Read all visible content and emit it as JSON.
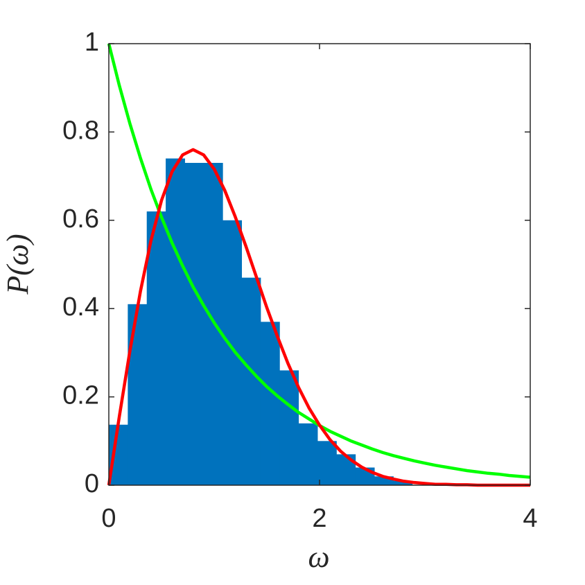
{
  "chart_data": {
    "type": "histogram",
    "x_label": "ω",
    "y_label": "P(ω)",
    "bins": [
      0,
      0.18,
      0.36,
      0.54,
      0.72,
      0.9,
      1.08,
      1.26,
      1.44,
      1.62,
      1.8,
      1.98,
      2.16,
      2.34,
      2.52,
      2.7,
      2.88
    ],
    "values": [
      0.137,
      0.41,
      0.62,
      0.74,
      0.73,
      0.73,
      0.6,
      0.47,
      0.37,
      0.26,
      0.14,
      0.1,
      0.07,
      0.04,
      0.02,
      0.01
    ],
    "color": "#0072bd",
    "xlim": [
      0,
      4
    ],
    "ylim": [
      0,
      1
    ],
    "xticks": [
      0,
      2,
      4
    ],
    "yticks": [
      0,
      0.2,
      0.4,
      0.6,
      0.8,
      1
    ],
    "lines": {
      "x": [
        0,
        0.1,
        0.2,
        0.3,
        0.4,
        0.5,
        0.6,
        0.7,
        0.8,
        0.9,
        1,
        1.1,
        1.2,
        1.3,
        1.4,
        1.5,
        1.6,
        1.7,
        1.8,
        1.9,
        2,
        2.1,
        2.2,
        2.3,
        2.4,
        2.5,
        2.6,
        2.7,
        2.8,
        2.9,
        3,
        3.1,
        3.2,
        3.3,
        3.4,
        3.5,
        3.6,
        3.7,
        3.8,
        3.9,
        4
      ],
      "series": [
        {
          "color": "#00ff00",
          "values": [
            1,
            0.905,
            0.819,
            0.741,
            0.67,
            0.607,
            0.549,
            0.497,
            0.449,
            0.407,
            0.368,
            0.333,
            0.301,
            0.273,
            0.247,
            0.223,
            0.202,
            0.183,
            0.165,
            0.15,
            0.135,
            0.122,
            0.111,
            0.1,
            0.091,
            0.082,
            0.074,
            0.067,
            0.061,
            0.055,
            0.05,
            0.045,
            0.041,
            0.037,
            0.033,
            0.03,
            0.027,
            0.025,
            0.022,
            0.02,
            0.018
          ]
        },
        {
          "color": "#ff0000",
          "values": [
            0,
            0.156,
            0.304,
            0.439,
            0.554,
            0.645,
            0.71,
            0.748,
            0.76,
            0.748,
            0.716,
            0.668,
            0.608,
            0.542,
            0.472,
            0.402,
            0.337,
            0.276,
            0.222,
            0.175,
            0.136,
            0.103,
            0.077,
            0.057,
            0.041,
            0.029,
            0.02,
            0.014,
            0.009,
            0.006,
            0.004,
            0.002,
            0.002,
            0.001,
            0.001,
            0,
            0,
            0,
            0,
            0,
            0
          ]
        }
      ]
    }
  }
}
